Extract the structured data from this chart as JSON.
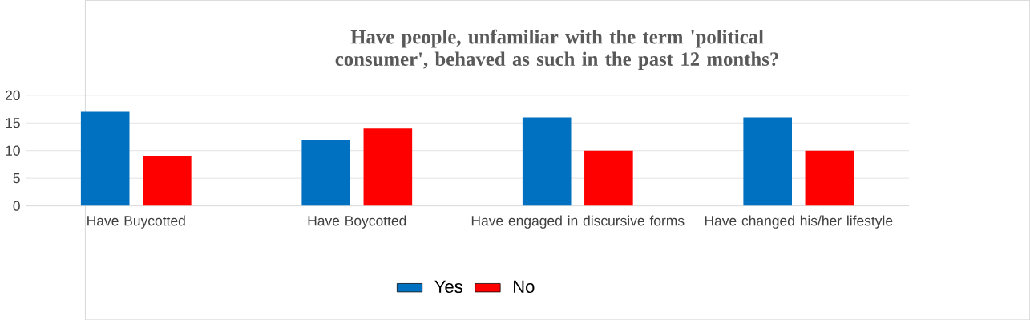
{
  "chart_data": {
    "type": "bar",
    "title": "Have people, unfamiliar with the term 'political consumer', behaved as such in the past 12 months?",
    "categories": [
      "Have Buycotted",
      "Have Boycotted",
      "Have engaged in discursive forms",
      "Have changed his/her lifestyle"
    ],
    "series": [
      {
        "name": "Yes",
        "color": "#0070c0",
        "values": [
          17,
          12,
          16,
          16
        ]
      },
      {
        "name": "No",
        "color": "#ff0000",
        "values": [
          9,
          14,
          10,
          10
        ]
      }
    ],
    "ylim": [
      0,
      20
    ],
    "yticks": [
      0,
      5,
      10,
      15,
      20
    ],
    "grid": "y",
    "legend": "bottom"
  }
}
